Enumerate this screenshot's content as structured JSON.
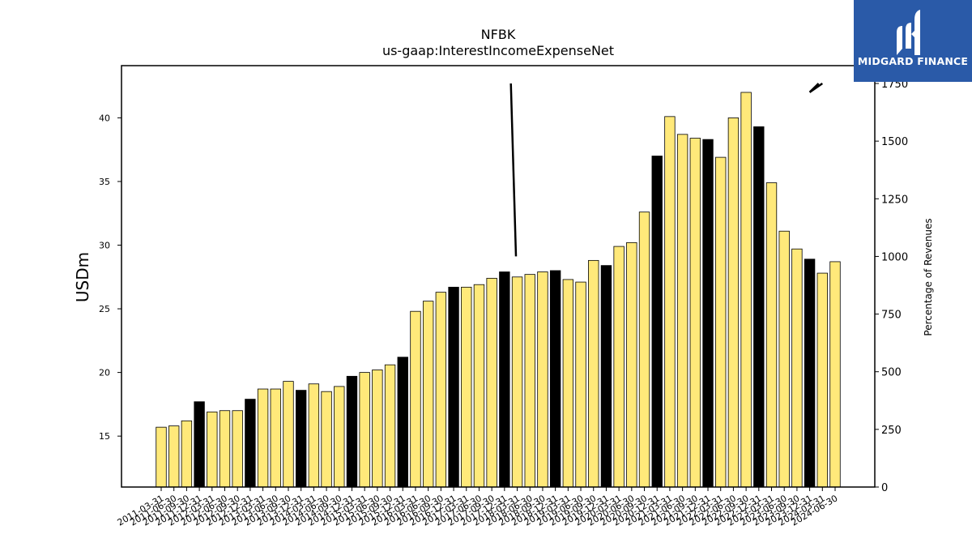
{
  "chart_data": {
    "type": "bar",
    "title": "NFBK",
    "subtitle": "us-gaap:InterestIncomeExpenseNet",
    "ylabel": "USDm",
    "y2label": "Percentage of Revenues",
    "ylim": [
      11,
      44.1
    ],
    "y2lim": [
      0,
      1750
    ],
    "yticks": [
      15,
      20,
      25,
      30,
      35,
      40
    ],
    "y2ticks": [
      0,
      250,
      500,
      750,
      1000,
      1250,
      1500,
      1750
    ],
    "categories": [
      "2011-03-31",
      "2011-06-30",
      "2011-09-30",
      "2011-12-31",
      "2012-03-31",
      "2012-06-30",
      "2012-09-30",
      "2012-12-31",
      "2013-03-31",
      "2013-06-30",
      "2013-09-30",
      "2013-12-31",
      "2014-03-31",
      "2014-06-30",
      "2014-09-30",
      "2014-12-31",
      "2015-03-31",
      "2015-06-30",
      "2015-09-30",
      "2015-12-31",
      "2016-03-31",
      "2016-06-30",
      "2016-09-30",
      "2016-12-31",
      "2017-03-31",
      "2017-06-30",
      "2017-09-30",
      "2017-12-31",
      "2018-03-31",
      "2018-06-30",
      "2018-09-30",
      "2018-12-31",
      "2019-03-31",
      "2019-06-30",
      "2019-09-30",
      "2019-12-31",
      "2020-03-31",
      "2020-06-30",
      "2020-09-30",
      "2020-12-31",
      "2021-03-31",
      "2021-06-30",
      "2021-09-30",
      "2021-12-31",
      "2022-03-31",
      "2022-06-30",
      "2022-09-30",
      "2022-12-31",
      "2023-03-31",
      "2023-06-30",
      "2023-09-30",
      "2023-12-31",
      "2024-03-31",
      "2024-06-30"
    ],
    "values": [
      15.7,
      15.8,
      16.2,
      17.7,
      16.9,
      17.0,
      17.0,
      17.9,
      18.7,
      18.7,
      19.3,
      18.6,
      19.1,
      18.5,
      18.9,
      19.7,
      20.0,
      20.2,
      20.6,
      21.2,
      24.8,
      25.6,
      26.3,
      26.7,
      26.7,
      26.9,
      27.4,
      27.9,
      27.5,
      27.7,
      27.9,
      28.0,
      27.3,
      27.1,
      28.8,
      28.4,
      29.9,
      30.2,
      32.6,
      37.0,
      40.1,
      38.7,
      38.4,
      38.3,
      36.9,
      40.0,
      42.0,
      39.3,
      34.9,
      31.1,
      29.7,
      28.9,
      27.8,
      28.7
    ],
    "highlight": [
      false,
      false,
      false,
      true,
      false,
      false,
      false,
      true,
      false,
      false,
      false,
      true,
      false,
      false,
      false,
      true,
      false,
      false,
      false,
      true,
      false,
      false,
      false,
      true,
      false,
      false,
      false,
      true,
      false,
      false,
      false,
      true,
      false,
      false,
      false,
      true,
      false,
      false,
      false,
      true,
      false,
      false,
      false,
      true,
      false,
      false,
      false,
      true,
      false,
      false,
      false,
      true,
      false,
      false
    ],
    "line_segments": [
      {
        "name": "",
        "points": [
          [
            27.5,
            1750
          ],
          [
            27.9,
            1000
          ]
        ]
      },
      {
        "name": "",
        "points": [
          [
            51.7,
            1750
          ],
          [
            51.0,
            1712
          ]
        ]
      },
      {
        "name": "",
        "points": [
          [
            51.0,
            1712
          ],
          [
            52.0,
            1750
          ]
        ]
      }
    ],
    "colors": {
      "bar": "#ffe97a",
      "bar_highlight": "#000000",
      "edge": "#000000",
      "line": "#000000"
    },
    "grid": false
  },
  "logo": {
    "text": "MIDGARD FINANCE"
  }
}
